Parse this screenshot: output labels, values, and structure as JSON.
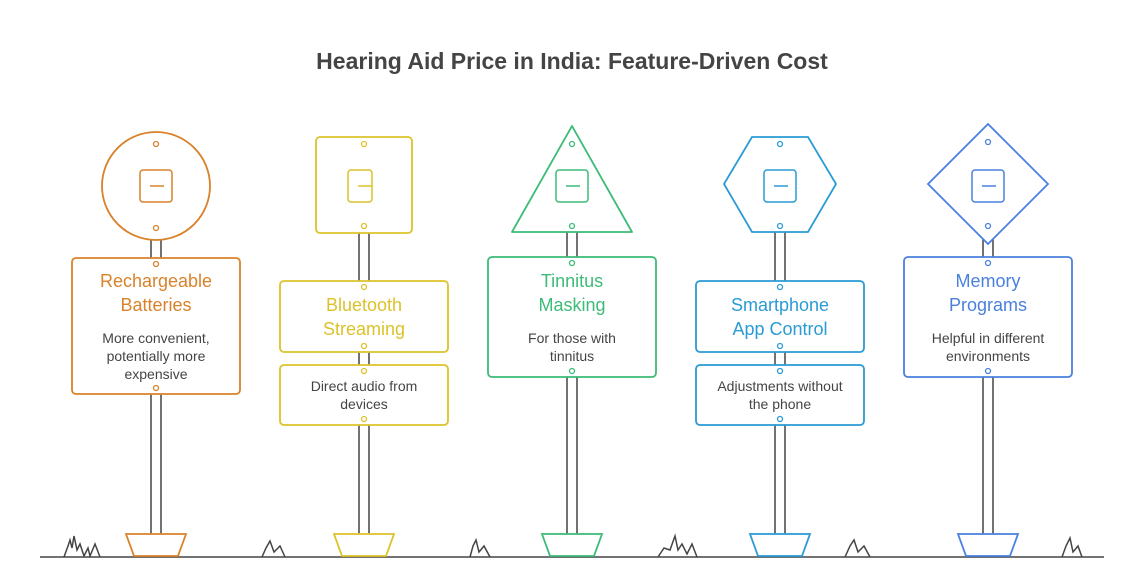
{
  "title": "Hearing Aid Price in India: Feature-Driven Cost",
  "signs": [
    {
      "title": "Rechargeable Batteries",
      "description": "More convenient, potentially more expensive"
    },
    {
      "title": "Bluetooth Streaming",
      "description": "Direct audio from devices"
    },
    {
      "title": "Tinnitus Masking",
      "description": "For those with tinnitus"
    },
    {
      "title": "Smartphone App Control",
      "description": "Adjustments without the phone"
    },
    {
      "title": "Memory Programs",
      "description": "Helpful in different environments"
    }
  ]
}
